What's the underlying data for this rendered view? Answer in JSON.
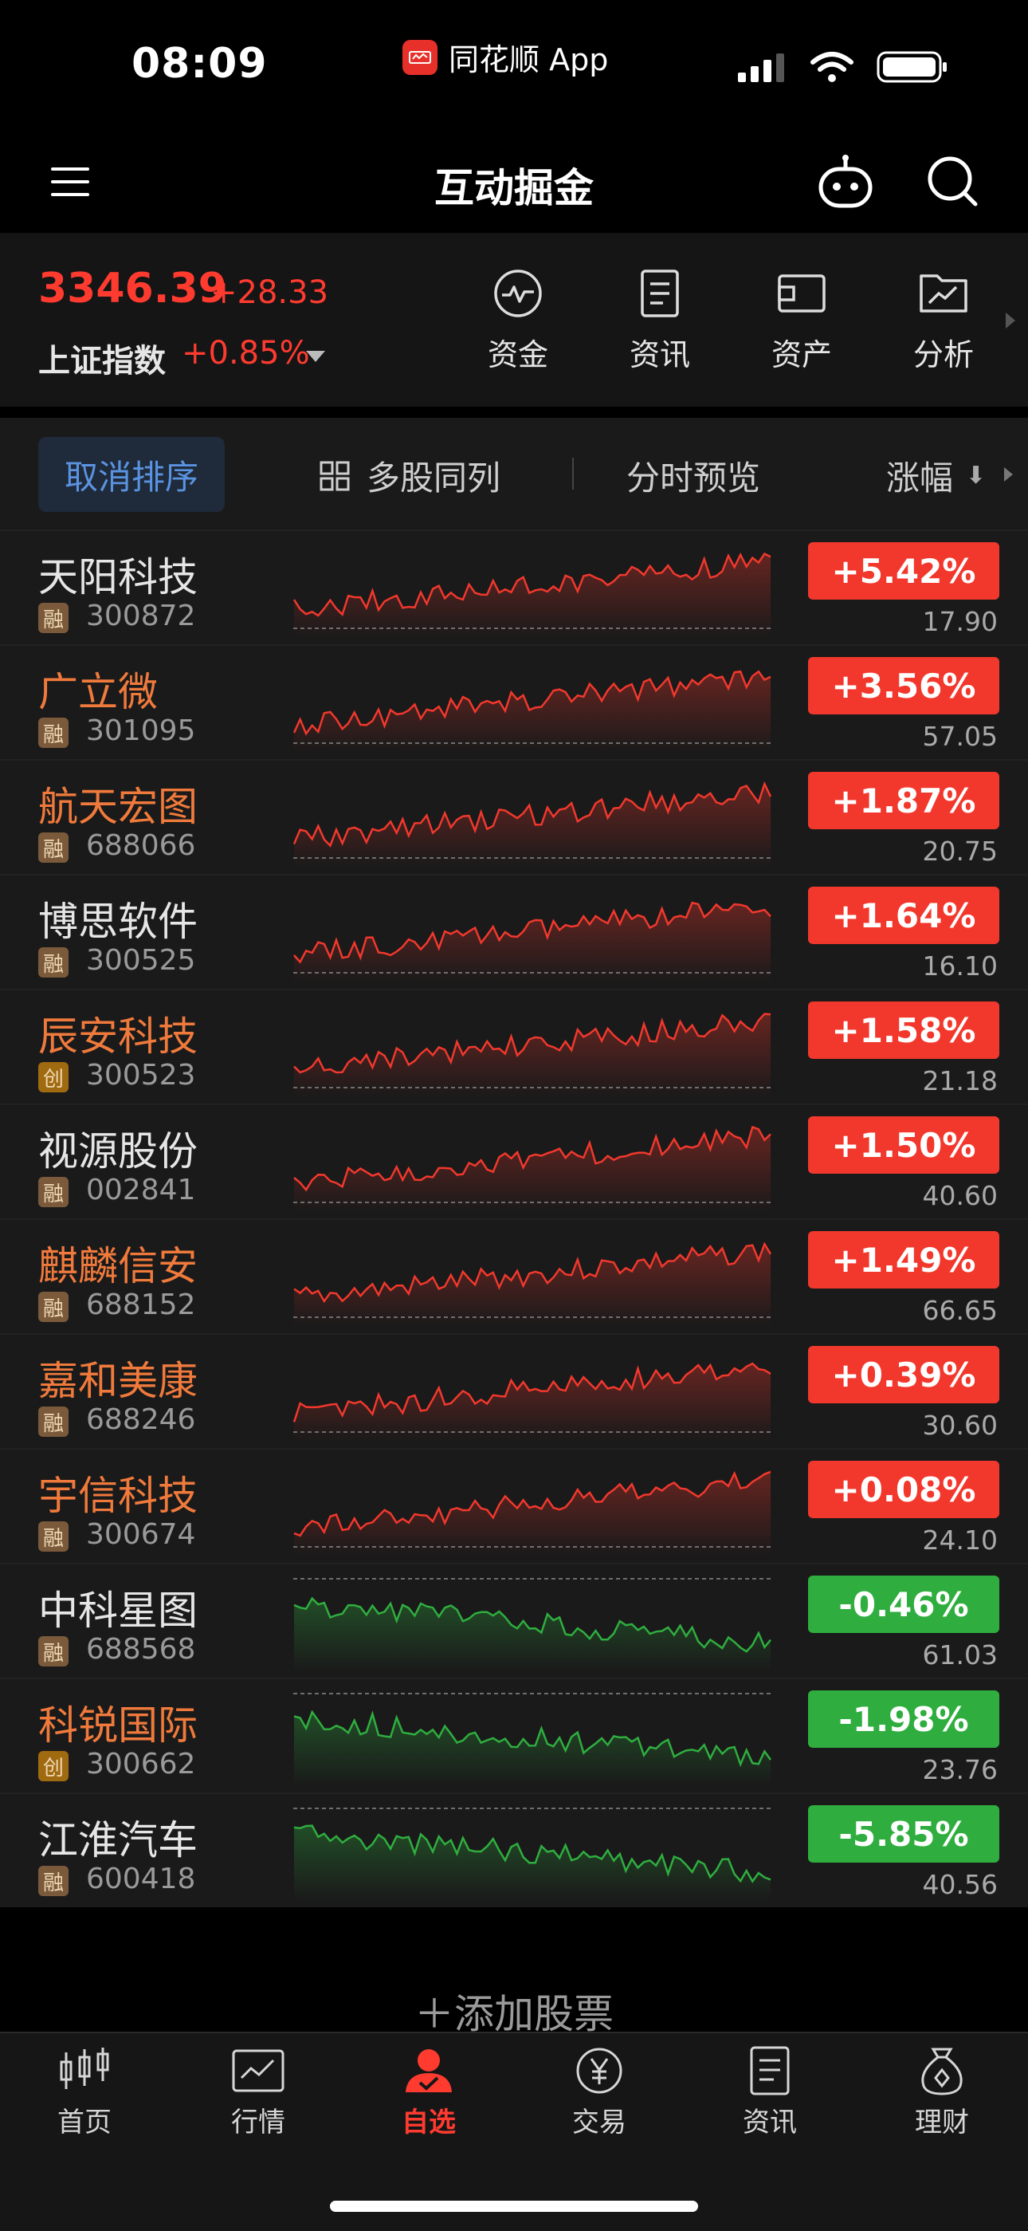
{
  "status_bar": {
    "time": "08:09",
    "app_name": "同花顺 App"
  },
  "header": {
    "title": "互动掘金"
  },
  "index": {
    "value": "3346.39",
    "change": "+28.33",
    "name": "上证指数",
    "percent": "+0.85%"
  },
  "quick_actions": [
    {
      "label": "资金",
      "icon": "pulse-icon"
    },
    {
      "label": "资讯",
      "icon": "document-icon"
    },
    {
      "label": "资产",
      "icon": "wallet-icon"
    },
    {
      "label": "分析",
      "icon": "chart-folder-icon"
    }
  ],
  "toolbar": {
    "cancel_sort": "取消排序",
    "multi_stock": "多股同列",
    "time_preview": "分时预览",
    "sort_column": "涨幅",
    "sort_arrow": "⬇"
  },
  "stocks": [
    {
      "name": "天阳科技",
      "tag": "融",
      "code": "300872",
      "change": "+5.42%",
      "price": "17.90",
      "direction": "up",
      "name_color": "#e6e6e6"
    },
    {
      "name": "广立微",
      "tag": "融",
      "code": "301095",
      "change": "+3.56%",
      "price": "57.05",
      "direction": "up",
      "name_color": "#f07a3c"
    },
    {
      "name": "航天宏图",
      "tag": "融",
      "code": "688066",
      "change": "+1.87%",
      "price": "20.75",
      "direction": "up",
      "name_color": "#f07a3c"
    },
    {
      "name": "博思软件",
      "tag": "融",
      "code": "300525",
      "change": "+1.64%",
      "price": "16.10",
      "direction": "up",
      "name_color": "#e6e6e6"
    },
    {
      "name": "辰安科技",
      "tag": "创",
      "code": "300523",
      "change": "+1.58%",
      "price": "21.18",
      "direction": "up",
      "name_color": "#f07a3c"
    },
    {
      "name": "视源股份",
      "tag": "融",
      "code": "002841",
      "change": "+1.50%",
      "price": "40.60",
      "direction": "up",
      "name_color": "#e6e6e6"
    },
    {
      "name": "麒麟信安",
      "tag": "融",
      "code": "688152",
      "change": "+1.49%",
      "price": "66.65",
      "direction": "up",
      "name_color": "#f07a3c"
    },
    {
      "name": "嘉和美康",
      "tag": "融",
      "code": "688246",
      "change": "+0.39%",
      "price": "30.60",
      "direction": "up",
      "name_color": "#f07a3c"
    },
    {
      "name": "宇信科技",
      "tag": "融",
      "code": "300674",
      "change": "+0.08%",
      "price": "24.10",
      "direction": "up",
      "name_color": "#f07a3c"
    },
    {
      "name": "中科星图",
      "tag": "融",
      "code": "688568",
      "change": "-0.46%",
      "price": "61.03",
      "direction": "down",
      "name_color": "#e6e6e6"
    },
    {
      "name": "科锐国际",
      "tag": "创",
      "code": "300662",
      "change": "-1.98%",
      "price": "23.76",
      "direction": "down",
      "name_color": "#f07a3c"
    },
    {
      "name": "江淮汽车",
      "tag": "融",
      "code": "600418",
      "change": "-5.85%",
      "price": "40.56",
      "direction": "down",
      "name_color": "#e6e6e6"
    }
  ],
  "add_stock": "＋添加股票",
  "tab_bar": [
    {
      "label": "首页",
      "icon": "candlestick-icon",
      "active": false
    },
    {
      "label": "行情",
      "icon": "line-chart-icon",
      "active": false
    },
    {
      "label": "自选",
      "icon": "user-check-icon",
      "active": true
    },
    {
      "label": "交易",
      "icon": "yen-icon",
      "active": false
    },
    {
      "label": "资讯",
      "icon": "news-icon",
      "active": false
    },
    {
      "label": "理财",
      "icon": "money-bag-icon",
      "active": false
    }
  ],
  "colors": {
    "up": "#f2382d",
    "down": "#2fae3f",
    "active_tab": "#ff3b30",
    "accent_blue": "#5a93e0"
  }
}
